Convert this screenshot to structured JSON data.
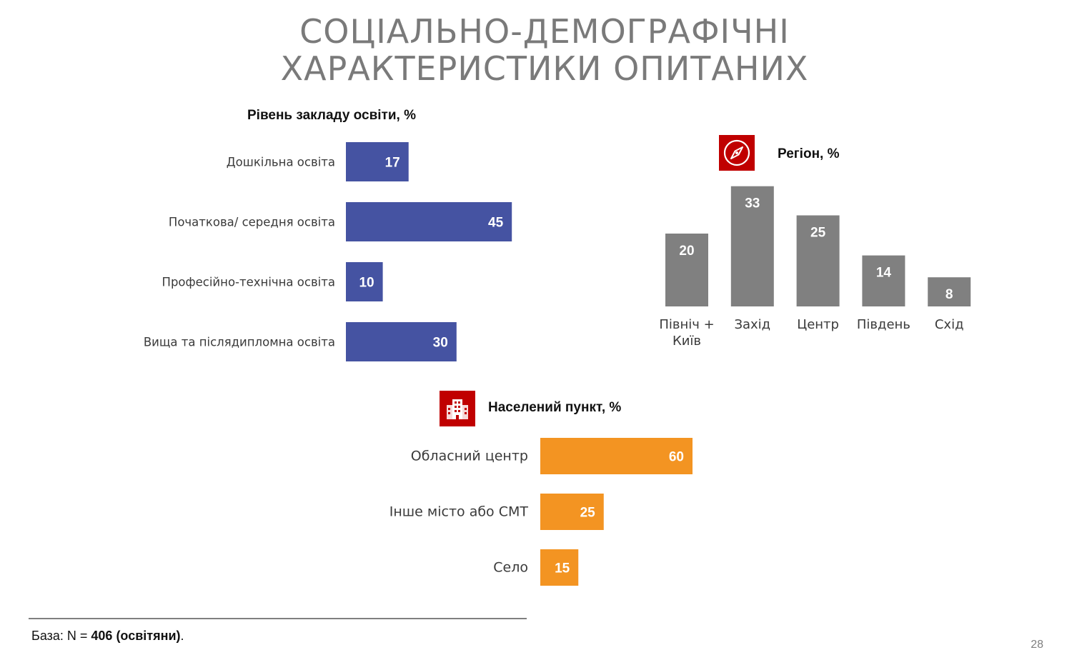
{
  "slide": {
    "title_line1": "СОЦІАЛЬНО-ДЕМОГРАФІЧНІ",
    "title_line2": "ХАРАКТЕРИСТИКИ ОПИТАНИХ",
    "footer_prefix": "База: N = ",
    "footer_bold": "406 (освітяни)",
    "footer_suffix": ".",
    "page_number": "28"
  },
  "icons": {
    "region": "compass-icon",
    "settlement": "buildings-icon"
  },
  "chart_data": [
    {
      "id": "education",
      "type": "bar",
      "orientation": "horizontal",
      "title": "Рівень закладу освіти, %",
      "categories": [
        "Дошкільна освіта",
        "Початкова/ середня освіта",
        "Професійно-технічна освіта",
        "Вища та післядипломна освіта"
      ],
      "values": [
        17,
        45,
        10,
        30
      ],
      "color": "#4553a2",
      "label_color": "#ffffff"
    },
    {
      "id": "region",
      "type": "bar",
      "orientation": "vertical",
      "title": "Регіон, %",
      "categories": [
        [
          "Північ +",
          "Київ"
        ],
        [
          "Захід"
        ],
        [
          "Центр"
        ],
        [
          "Південь"
        ],
        [
          "Схід"
        ]
      ],
      "values": [
        20,
        33,
        25,
        14,
        8
      ],
      "color": "#808080",
      "label_color": "#ffffff"
    },
    {
      "id": "settlement",
      "type": "bar",
      "orientation": "horizontal",
      "title": "Населений пункт, %",
      "categories": [
        "Обласний центр",
        "Інше місто або СМТ",
        "Село"
      ],
      "values": [
        60,
        25,
        15
      ],
      "color": "#f39422",
      "label_color": "#ffffff"
    }
  ]
}
